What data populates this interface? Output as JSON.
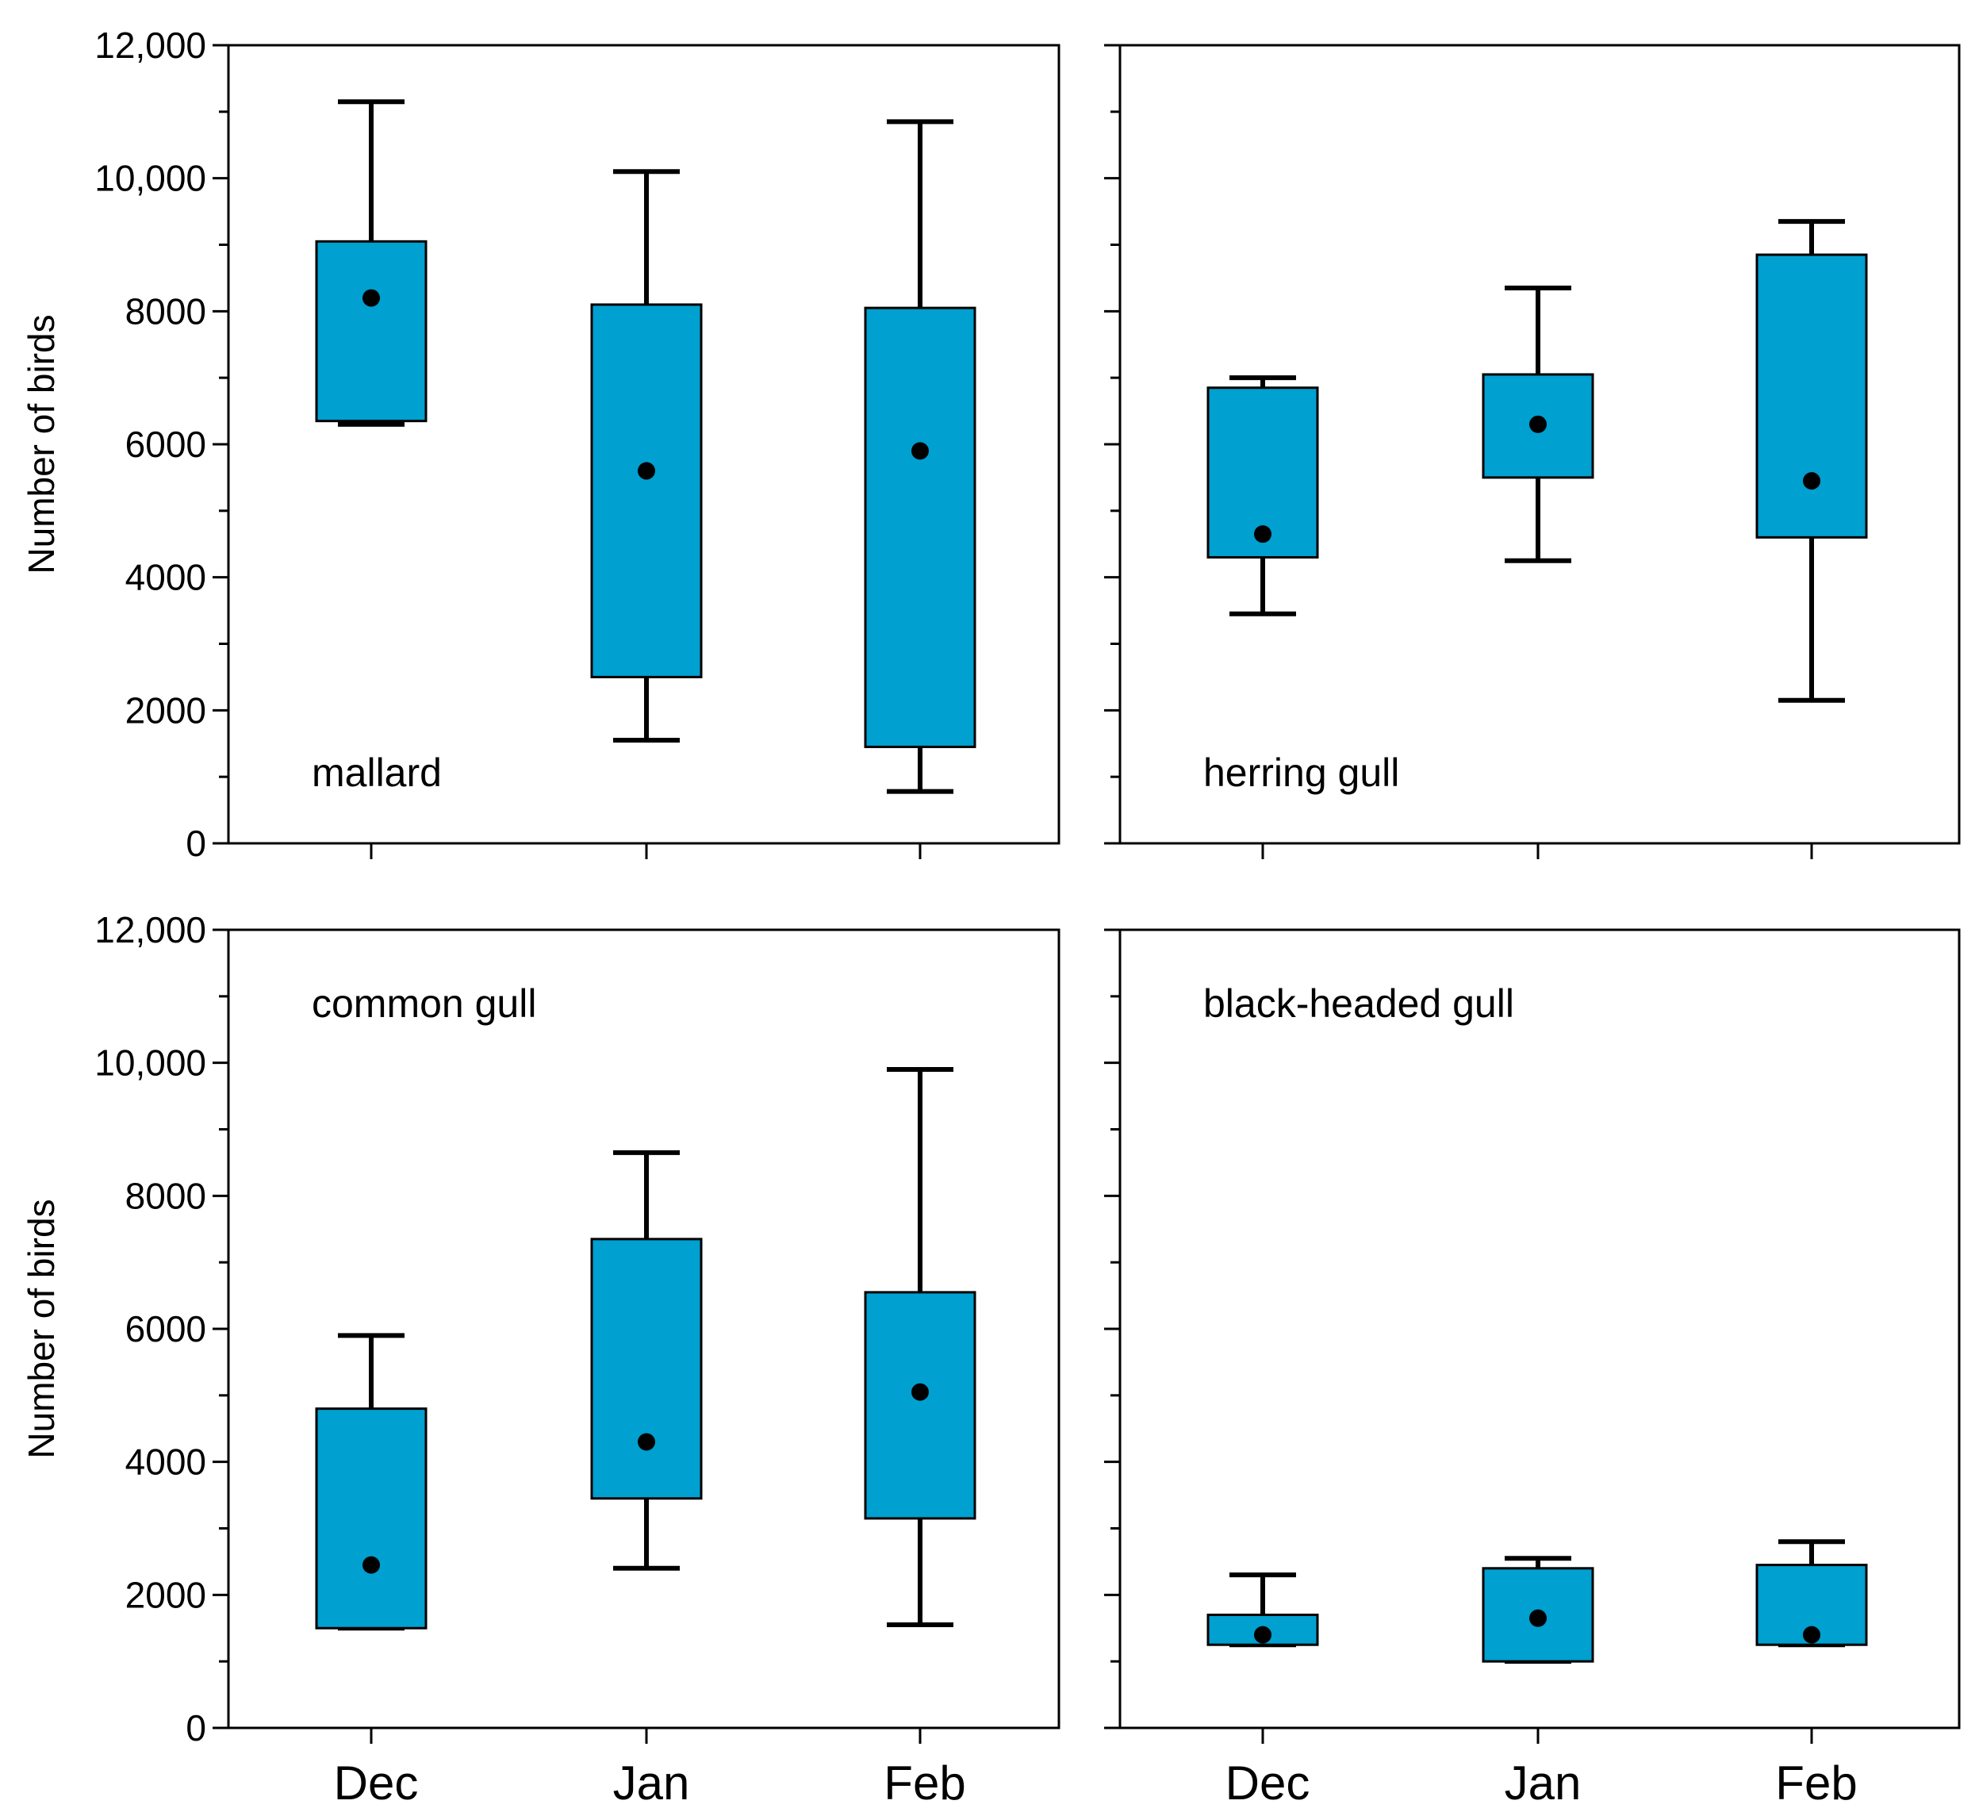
{
  "chart_data": {
    "type": "boxplot",
    "layout": "2x2 panels, shared axes",
    "ylabel": "Number of birds",
    "ylim": [
      0,
      12000
    ],
    "yticks": [
      0,
      2000,
      4000,
      6000,
      8000,
      10000,
      12000
    ],
    "ytick_labels": [
      "0",
      "2000",
      "4000",
      "6000",
      "8000",
      "10,000",
      "12,000"
    ],
    "y_minor_step": 1000,
    "categories": [
      "Dec",
      "Jan",
      "Feb"
    ],
    "colors": {
      "box_fill": "#00a0d0",
      "stroke": "#000000"
    },
    "panels": [
      {
        "label": "mallard",
        "label_position": "bottom-left",
        "boxes": [
          {
            "category": "Dec",
            "whisker_low": 6300,
            "q1": 6350,
            "q3": 9050,
            "whisker_high": 11150,
            "mean": 8200
          },
          {
            "category": "Jan",
            "whisker_low": 1550,
            "q1": 2500,
            "q3": 8100,
            "whisker_high": 10100,
            "mean": 5600
          },
          {
            "category": "Feb",
            "whisker_low": 780,
            "q1": 1450,
            "q3": 8050,
            "whisker_high": 10850,
            "mean": 5900
          }
        ]
      },
      {
        "label": "herring gull",
        "label_position": "bottom-left",
        "boxes": [
          {
            "category": "Dec",
            "whisker_low": 3450,
            "q1": 4300,
            "q3": 6850,
            "whisker_high": 7000,
            "mean": 4650
          },
          {
            "category": "Jan",
            "whisker_low": 4250,
            "q1": 5500,
            "q3": 7050,
            "whisker_high": 8350,
            "mean": 6300
          },
          {
            "category": "Feb",
            "whisker_low": 2150,
            "q1": 4600,
            "q3": 8850,
            "whisker_high": 9350,
            "mean": 5450
          }
        ]
      },
      {
        "label": "common gull",
        "label_position": "top-left",
        "boxes": [
          {
            "category": "Dec",
            "whisker_low": 1500,
            "q1": 1500,
            "q3": 4800,
            "whisker_high": 5900,
            "mean": 2450
          },
          {
            "category": "Jan",
            "whisker_low": 2400,
            "q1": 3450,
            "q3": 7350,
            "whisker_high": 8650,
            "mean": 4300
          },
          {
            "category": "Feb",
            "whisker_low": 1550,
            "q1": 3150,
            "q3": 6550,
            "whisker_high": 9900,
            "mean": 5050
          }
        ]
      },
      {
        "label": "black-headed gull",
        "label_position": "top-left",
        "boxes": [
          {
            "category": "Dec",
            "whisker_low": 1250,
            "q1": 1250,
            "q3": 1700,
            "whisker_high": 2300,
            "mean": 1400
          },
          {
            "category": "Jan",
            "whisker_low": 1000,
            "q1": 1000,
            "q3": 2400,
            "whisker_high": 2550,
            "mean": 1650
          },
          {
            "category": "Feb",
            "whisker_low": 1250,
            "q1": 1250,
            "q3": 2450,
            "whisker_high": 2800,
            "mean": 1400
          }
        ]
      }
    ]
  }
}
